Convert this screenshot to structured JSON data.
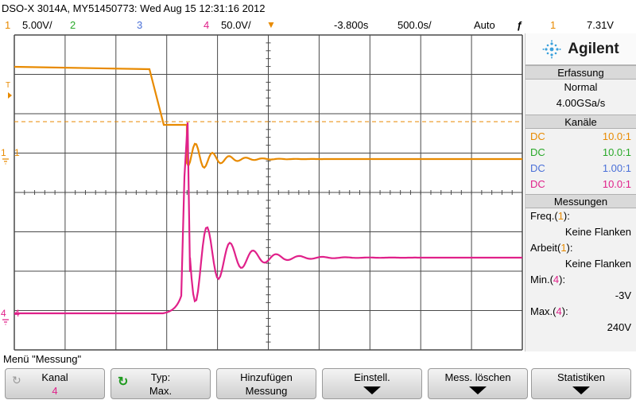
{
  "header": {
    "title": "DSO-X 3014A, MY51450773: Wed Aug 15 12:31:16 2012"
  },
  "status": {
    "ch1_num": "1",
    "ch1_scale": "5.00V/",
    "ch2_num": "2",
    "ch3_num": "3",
    "ch4_num": "4",
    "ch4_scale": "50.0V/",
    "delay": "-3.800s",
    "timebase": "500.0s/",
    "trigger_mode": "Auto",
    "trigger_channel": "1",
    "trigger_level": "7.31V"
  },
  "colors": {
    "ch1": "#e88a00",
    "ch2": "#28a828",
    "ch3": "#4a70d8",
    "ch4": "#e0218a",
    "grid": "#4a4a4a"
  },
  "markers": {
    "trigger": "T",
    "ch1": "1",
    "ch4": "4"
  },
  "sidebar": {
    "brand": "Agilent",
    "acquisition": {
      "heading": "Erfassung",
      "mode": "Normal",
      "rate": "4.00GSa/s"
    },
    "channels": {
      "heading": "Kanäle",
      "rows": [
        {
          "coupling": "DC",
          "probe": "10.0:1"
        },
        {
          "coupling": "DC",
          "probe": "10.0:1"
        },
        {
          "coupling": "DC",
          "probe": "1.00:1"
        },
        {
          "coupling": "DC",
          "probe": "10.0:1"
        }
      ]
    },
    "measurements": {
      "heading": "Messungen",
      "items": [
        {
          "name": "Freq.",
          "channel": "1",
          "value": "Keine Flanken"
        },
        {
          "name": "Arbeit",
          "channel": "1",
          "value": "Keine Flanken"
        },
        {
          "name": "Min.",
          "channel": "4",
          "value": "-3V"
        },
        {
          "name": "Max.",
          "channel": "4",
          "value": "240V"
        }
      ]
    }
  },
  "menu": {
    "title": "Menü \"Messung\"",
    "softkeys": [
      {
        "line1": "Kanal",
        "line2": "4"
      },
      {
        "line1": "Typ:",
        "line2": "Max."
      },
      {
        "line1": "Hinzufügen",
        "line2": "Messung"
      },
      {
        "line1": "Einstell.",
        "line2": ""
      },
      {
        "line1": "Mess. löschen",
        "line2": ""
      },
      {
        "line1": "Statistiken",
        "line2": ""
      }
    ]
  }
}
